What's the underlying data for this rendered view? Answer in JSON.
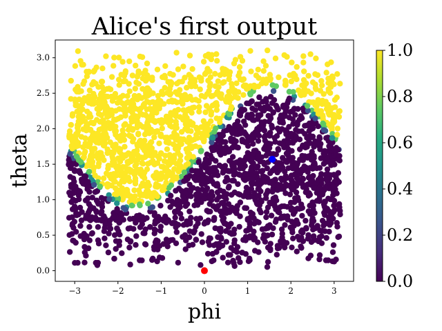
{
  "chart_data": {
    "type": "scatter",
    "title": "Alice's first output",
    "xlabel": "phi",
    "ylabel": "theta",
    "xlim": [
      -3.45,
      3.45
    ],
    "ylim": [
      -0.15,
      3.25
    ],
    "xticks": [
      -3,
      -2,
      -1,
      0,
      1,
      2,
      3
    ],
    "xtick_labels": [
      "−3",
      "−2",
      "−1",
      "0",
      "1",
      "2",
      "3"
    ],
    "yticks": [
      0.0,
      0.5,
      1.0,
      1.5,
      2.0,
      2.5,
      3.0
    ],
    "ytick_labels": [
      "0.0",
      "0.5",
      "1.0",
      "1.5",
      "2.0",
      "2.5",
      "3.0"
    ],
    "colormap": "viridis",
    "colorbar": {
      "range": [
        0.0,
        1.0
      ],
      "ticks": [
        0.0,
        0.2,
        0.4,
        0.6,
        0.8,
        1.0
      ],
      "tick_labels": [
        "0.0",
        "0.2",
        "0.4",
        "0.6",
        "0.8",
        "1.0"
      ]
    },
    "colors": {
      "low": "#440154",
      "high": "#fde725",
      "marker_blue": "#0000ff",
      "marker_red": "#ff0000"
    },
    "grid": false,
    "boundary": {
      "description": "theta = 1.72 + 0.84*sin(phi); value 1 above, 0 below",
      "offset": 1.72,
      "amplitude": 0.84
    },
    "point_cloud": {
      "count": 2600,
      "phi_range": [
        -3.14,
        3.14
      ],
      "theta_range": [
        0.0,
        3.14
      ]
    },
    "highlighted_points": [
      {
        "x": 1.57,
        "y": 1.57,
        "color": "#0000ff"
      },
      {
        "x": 0.0,
        "y": 0.0,
        "color": "#ff0000"
      }
    ]
  }
}
